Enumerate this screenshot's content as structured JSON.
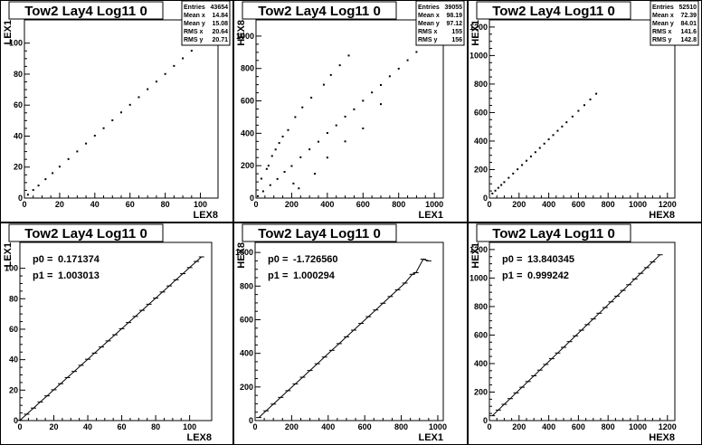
{
  "chart_data": [
    {
      "type": "scatter",
      "title": "Tow2 Lay4 Log11 0",
      "xlabel": "LEX8",
      "ylabel": "LEX1",
      "xlim": [
        0,
        110
      ],
      "ylim": [
        0,
        115
      ],
      "xticks": [
        0,
        20,
        40,
        60,
        80,
        100
      ],
      "yticks": [
        0,
        20,
        40,
        60,
        80,
        100
      ],
      "stats": [
        {
          "label": "Entries",
          "value": "43654"
        },
        {
          "label": "Mean x",
          "value": "14.84"
        },
        {
          "label": "Mean y",
          "value": "15.08"
        },
        {
          "label": "RMS x",
          "value": "20.64"
        },
        {
          "label": "RMS y",
          "value": "20.71"
        }
      ],
      "x": [
        2,
        5,
        8,
        12,
        16,
        20,
        25,
        30,
        35,
        40,
        45,
        50,
        55,
        60,
        65,
        70,
        75,
        80,
        85,
        90,
        95,
        100,
        103
      ],
      "y": [
        2.2,
        5.2,
        8.1,
        12.2,
        16.1,
        20.3,
        25.2,
        30.1,
        35.2,
        40.3,
        45.1,
        50.2,
        55.3,
        60.2,
        65.1,
        70.3,
        75.2,
        80.1,
        85.3,
        90.2,
        95.1,
        100.3,
        103.2
      ]
    },
    {
      "type": "scatter",
      "title": "Tow2 Lay4 Log11 0",
      "xlabel": "LEX1",
      "ylabel": "HEX8",
      "xlim": [
        0,
        1050
      ],
      "ylim": [
        0,
        1100
      ],
      "xticks": [
        0,
        200,
        400,
        600,
        800,
        1000
      ],
      "yticks": [
        0,
        200,
        400,
        600,
        800,
        1000
      ],
      "stats": [
        {
          "label": "Entries",
          "value": "39055"
        },
        {
          "label": "Mean x",
          "value": "98.19"
        },
        {
          "label": "Mean y",
          "value": "97.12"
        },
        {
          "label": "RMS x",
          "value": "155"
        },
        {
          "label": "RMS y",
          "value": "156"
        }
      ],
      "x": [
        10,
        40,
        80,
        120,
        160,
        200,
        250,
        300,
        350,
        400,
        450,
        500,
        550,
        600,
        650,
        700,
        750,
        800,
        850,
        900,
        950,
        60,
        90,
        130,
        180,
        220,
        260,
        310,
        380,
        420,
        470,
        520,
        30,
        70,
        110,
        150,
        210,
        240,
        330,
        400,
        500,
        600,
        700
      ],
      "y": [
        12,
        42,
        80,
        118,
        162,
        198,
        252,
        301,
        348,
        402,
        449,
        503,
        548,
        601,
        652,
        698,
        752,
        799,
        851,
        902,
        948,
        180,
        260,
        340,
        420,
        500,
        560,
        620,
        700,
        760,
        820,
        880,
        120,
        200,
        300,
        380,
        90,
        60,
        150,
        250,
        350,
        430,
        580
      ]
    },
    {
      "type": "scatter",
      "title": "Tow2 Lay4 Log11 0",
      "xlabel": "HEX8",
      "ylabel": "HEX1",
      "xlim": [
        0,
        1250
      ],
      "ylim": [
        0,
        1250
      ],
      "xticks": [
        0,
        200,
        400,
        600,
        800,
        1000,
        1200
      ],
      "yticks": [
        0,
        200,
        400,
        600,
        800,
        1000,
        1200
      ],
      "stats": [
        {
          "label": "Entries",
          "value": "52510"
        },
        {
          "label": "Mean x",
          "value": "72.39"
        },
        {
          "label": "Mean y",
          "value": "84.01"
        },
        {
          "label": "RMS x",
          "value": "141.6"
        },
        {
          "label": "RMS y",
          "value": "142.8"
        }
      ],
      "x": [
        20,
        40,
        60,
        80,
        100,
        130,
        160,
        190,
        220,
        250,
        280,
        310,
        340,
        370,
        400,
        430,
        460,
        490,
        520,
        560,
        600,
        640,
        680,
        720
      ],
      "y": [
        32,
        52,
        72,
        92,
        112,
        142,
        172,
        202,
        232,
        262,
        292,
        322,
        352,
        382,
        412,
        442,
        472,
        502,
        532,
        572,
        612,
        652,
        692,
        732
      ]
    },
    {
      "type": "line",
      "title": "Tow2 Lay4 Log11 0",
      "xlabel": "LEX8",
      "ylabel": "LEX1",
      "xlim": [
        0,
        113
      ],
      "ylim": [
        0,
        117
      ],
      "xticks": [
        0,
        20,
        40,
        60,
        80,
        100
      ],
      "yticks": [
        0,
        20,
        40,
        60,
        80,
        100
      ],
      "fit": [
        {
          "label": "p0",
          "value": "0.171374"
        },
        {
          "label": "p1",
          "value": "1.003013"
        }
      ],
      "x": [
        0,
        4,
        8,
        12,
        16,
        20,
        24,
        28,
        32,
        36,
        40,
        44,
        48,
        52,
        56,
        60,
        64,
        68,
        72,
        76,
        80,
        84,
        88,
        92,
        96,
        100,
        104,
        107
      ],
      "y": [
        0.17,
        4.18,
        8.2,
        12.21,
        16.22,
        20.23,
        24.24,
        28.26,
        32.27,
        36.28,
        40.29,
        44.3,
        48.32,
        52.33,
        56.34,
        60.35,
        64.36,
        68.38,
        72.39,
        76.4,
        80.41,
        84.42,
        88.44,
        92.45,
        96.46,
        100.47,
        104.48,
        107.49
      ]
    },
    {
      "type": "line",
      "title": "Tow2 Lay4 Log11 0",
      "xlabel": "LEX1",
      "ylabel": "HEX8",
      "xlim": [
        0,
        1030
      ],
      "ylim": [
        0,
        1060
      ],
      "xticks": [
        0,
        200,
        400,
        600,
        800,
        1000
      ],
      "yticks": [
        0,
        200,
        400,
        600,
        800,
        1000
      ],
      "fit": [
        {
          "label": "p0",
          "value": "-1.726560"
        },
        {
          "label": "p1",
          "value": "1.000294"
        }
      ],
      "x": [
        20,
        60,
        100,
        140,
        180,
        220,
        260,
        300,
        340,
        380,
        420,
        460,
        500,
        540,
        580,
        620,
        660,
        700,
        740,
        780,
        820,
        860,
        880,
        920,
        950
      ],
      "y": [
        18,
        58,
        98,
        138,
        178,
        218,
        258,
        298,
        338,
        378,
        418,
        458,
        498,
        538,
        578,
        618,
        658,
        698,
        738,
        778,
        818,
        870,
        880,
        960,
        950
      ]
    },
    {
      "type": "line",
      "title": "Tow2 Lay4 Log11 0",
      "xlabel": "HEX8",
      "ylabel": "HEX1",
      "xlim": [
        0,
        1250
      ],
      "ylim": [
        0,
        1250
      ],
      "xticks": [
        0,
        200,
        400,
        600,
        800,
        1000,
        1200
      ],
      "yticks": [
        0,
        200,
        400,
        600,
        800,
        1000,
        1200
      ],
      "fit": [
        {
          "label": "p0",
          "value": "13.840345"
        },
        {
          "label": "p1",
          "value": "0.999242"
        }
      ],
      "x": [
        20,
        60,
        100,
        140,
        180,
        220,
        260,
        300,
        340,
        380,
        420,
        460,
        500,
        540,
        580,
        620,
        660,
        700,
        740,
        780,
        820,
        860,
        900,
        940,
        980,
        1020,
        1060,
        1100,
        1150
      ],
      "y": [
        34,
        74,
        114,
        154,
        194,
        234,
        274,
        314,
        354,
        394,
        434,
        474,
        514,
        554,
        594,
        634,
        673,
        713,
        753,
        793,
        833,
        873,
        913,
        953,
        993,
        1033,
        1073,
        1113,
        1163
      ]
    }
  ]
}
